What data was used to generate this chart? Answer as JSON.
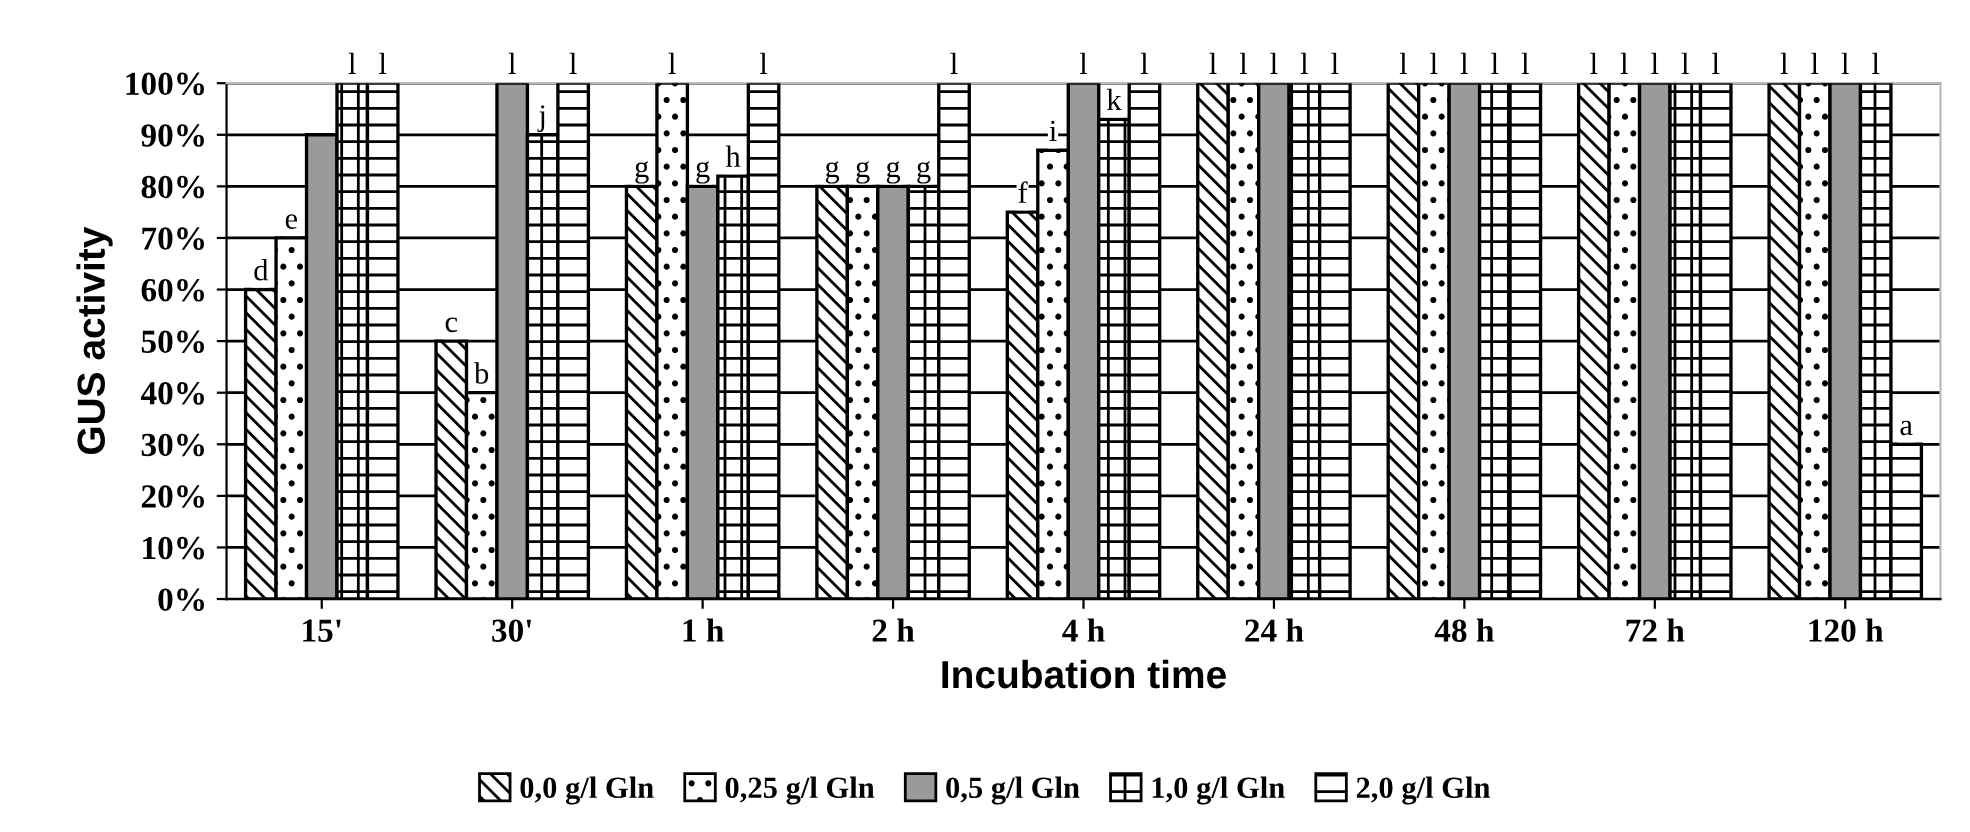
{
  "chart_data": {
    "type": "bar",
    "xlabel": "Incubation time",
    "ylabel": "GUS activity",
    "categories": [
      "15'",
      "30'",
      "1 h",
      "2 h",
      "4 h",
      "24 h",
      "48 h",
      "72 h",
      "120 h"
    ],
    "series": [
      {
        "name": "0,0 g/l Gln",
        "color": "#000000",
        "values": [
          60,
          50,
          80,
          80,
          75,
          100,
          100,
          100,
          100
        ]
      },
      {
        "name": "0,25 g/l Gln",
        "color": "#000000",
        "values": [
          70,
          40,
          100,
          80,
          87,
          100,
          100,
          100,
          100
        ]
      },
      {
        "name": "0,5 g/l Gln",
        "color": "#9a9a9a",
        "values": [
          90,
          100,
          80,
          80,
          100,
          100,
          100,
          100,
          100
        ]
      },
      {
        "name": "1,0 g/l Gln",
        "color": "#000000",
        "values": [
          100,
          90,
          82,
          80,
          93,
          100,
          100,
          100,
          100
        ]
      },
      {
        "name": "2,0 g/l Gln",
        "color": "#000000",
        "values": [
          100,
          100,
          100,
          100,
          100,
          100,
          100,
          100,
          30
        ]
      }
    ],
    "value_labels": [
      [
        "d",
        "c",
        "g",
        "g",
        "f",
        "l",
        "l",
        "l",
        "l"
      ],
      [
        "e",
        "b",
        "l",
        "g",
        "i",
        "l",
        "l",
        "l",
        "l"
      ],
      [
        null,
        "l",
        "g",
        "g",
        "l",
        "l",
        "l",
        "l",
        "l"
      ],
      [
        "l",
        "j",
        "h",
        "g",
        "k",
        "l",
        "l",
        "l",
        "l"
      ],
      [
        "l",
        "l",
        "l",
        "l",
        "l",
        "l",
        "l",
        "l",
        "a"
      ]
    ],
    "ylim": [
      0,
      100
    ],
    "yticks": [
      {
        "value": 0,
        "label": "0%"
      },
      {
        "value": 10,
        "label": "10%"
      },
      {
        "value": 20,
        "label": "20%"
      },
      {
        "value": 30,
        "label": "30%"
      },
      {
        "value": 40,
        "label": "40%"
      },
      {
        "value": 50,
        "label": "50%"
      },
      {
        "value": 60,
        "label": "60%"
      },
      {
        "value": 70,
        "label": "70%"
      },
      {
        "value": 80,
        "label": "80%"
      },
      {
        "value": 90,
        "label": "90%"
      },
      {
        "value": 100,
        "label": "100%"
      }
    ],
    "grid": "y",
    "legend": "bottom"
  }
}
